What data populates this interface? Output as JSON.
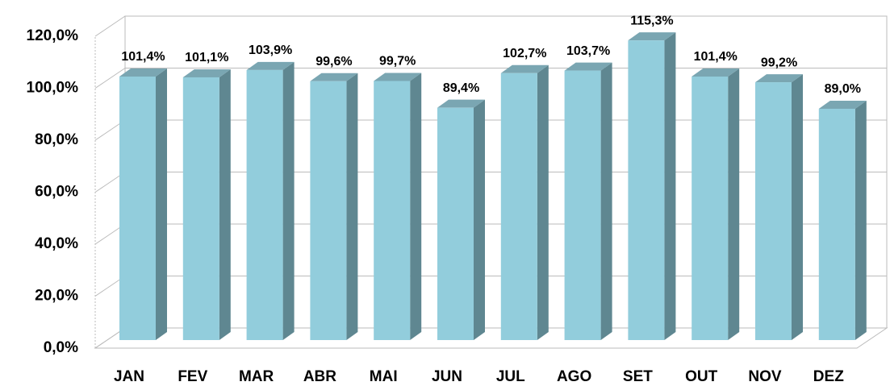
{
  "chart_data": {
    "type": "bar3d",
    "categories": [
      "JAN",
      "FEV",
      "MAR",
      "ABR",
      "MAI",
      "JUN",
      "JUL",
      "AGO",
      "SET",
      "OUT",
      "NOV",
      "DEZ"
    ],
    "values": [
      101.4,
      101.1,
      103.9,
      99.6,
      99.7,
      89.4,
      102.7,
      103.7,
      115.3,
      101.4,
      99.2,
      89.0
    ],
    "value_labels": [
      "101,4%",
      "101,1%",
      "103,9%",
      "99,6%",
      "99,7%",
      "89,4%",
      "102,7%",
      "103,7%",
      "115,3%",
      "101,4%",
      "99,2%",
      "89,0%"
    ],
    "color": "#92cddc",
    "ylim": [
      0,
      120
    ],
    "yticks": [
      {
        "value": 0,
        "label": "0,0%"
      },
      {
        "value": 20,
        "label": "20,0%"
      },
      {
        "value": 40,
        "label": "40,0%"
      },
      {
        "value": 60,
        "label": "60,0%"
      },
      {
        "value": 80,
        "label": "80,0%"
      },
      {
        "value": 100,
        "label": "100,0%"
      },
      {
        "value": 120,
        "label": "120,0%"
      }
    ],
    "grid": true
  }
}
